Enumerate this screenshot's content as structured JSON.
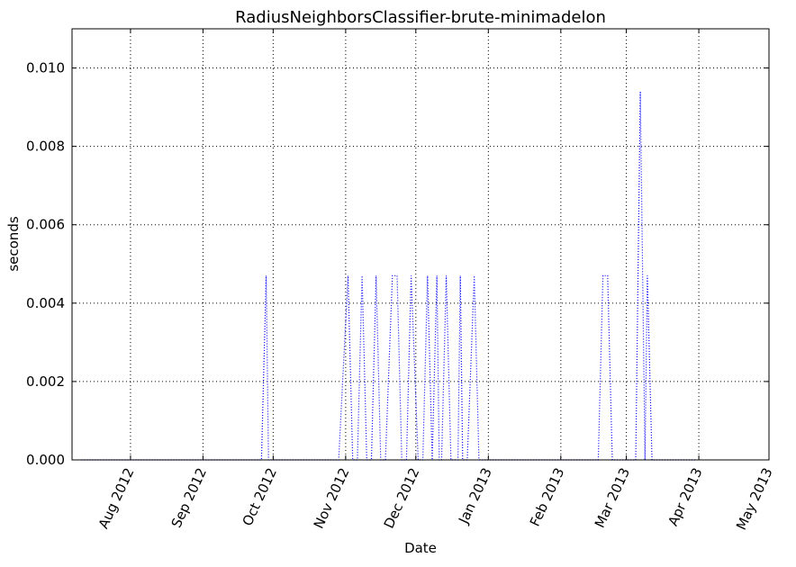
{
  "chart_data": {
    "type": "line",
    "title": "RadiusNeighborsClassifier-brute-minimadelon",
    "xlabel": "Date",
    "ylabel": "seconds",
    "x_scale": "date",
    "xlim": [
      "2012-07-07",
      "2013-05-01"
    ],
    "ylim": [
      0,
      0.011
    ],
    "grid": true,
    "x_ticks": [
      "2012-08-01",
      "2012-09-01",
      "2012-10-01",
      "2012-11-01",
      "2012-12-01",
      "2013-01-01",
      "2013-02-01",
      "2013-03-01",
      "2013-04-01",
      "2013-05-01"
    ],
    "x_tick_labels": [
      "Aug 2012",
      "Sep 2012",
      "Oct 2012",
      "Nov 2012",
      "Dec 2012",
      "Jan 2013",
      "Feb 2013",
      "Mar 2013",
      "Apr 2013",
      "May 2013"
    ],
    "y_ticks": [
      0,
      0.002,
      0.004,
      0.006,
      0.008,
      0.01
    ],
    "y_tick_labels": [
      "0.000",
      "0.002",
      "0.004",
      "0.006",
      "0.008",
      "0.010"
    ],
    "series": [
      {
        "color": "#0000ff",
        "line_style": "dotted",
        "x": [
          "2012-07-11",
          "2012-09-26",
          "2012-09-28",
          "2012-09-29",
          "2012-10-01",
          "2012-10-29",
          "2012-11-02",
          "2012-11-04",
          "2012-11-06",
          "2012-11-08",
          "2012-11-10",
          "2012-11-12",
          "2012-11-14",
          "2012-11-16",
          "2012-11-18",
          "2012-11-21",
          "2012-11-23",
          "2012-11-25",
          "2012-11-27",
          "2012-11-29",
          "2012-12-02",
          "2012-12-04",
          "2012-12-06",
          "2012-12-08",
          "2012-12-10",
          "2012-12-11",
          "2012-12-12",
          "2012-12-14",
          "2012-12-16",
          "2012-12-19",
          "2012-12-20",
          "2012-12-21",
          "2012-12-23",
          "2012-12-26",
          "2012-12-28",
          "2012-12-30",
          "2013-01-02",
          "2013-01-05",
          "2013-02-17",
          "2013-02-19",
          "2013-02-21",
          "2013-02-23",
          "2013-02-25",
          "2013-03-05",
          "2013-03-07",
          "2013-03-09",
          "2013-03-10",
          "2013-03-12",
          "2013-03-14",
          "2013-03-31"
        ],
        "y": [
          0,
          0,
          0.0047,
          0,
          0,
          0,
          0.0047,
          0,
          0,
          0.0047,
          0,
          0,
          0.0047,
          0,
          0,
          0.0047,
          0.0047,
          0,
          0,
          0.0047,
          0,
          0,
          0.0047,
          0,
          0.0047,
          0,
          0,
          0.0047,
          0,
          0,
          0.0047,
          0,
          0,
          0.0047,
          0,
          0,
          0,
          0,
          0,
          0.0047,
          0.0047,
          0,
          0,
          0,
          0.0094,
          0,
          0.0047,
          0,
          0,
          0
        ]
      }
    ]
  }
}
